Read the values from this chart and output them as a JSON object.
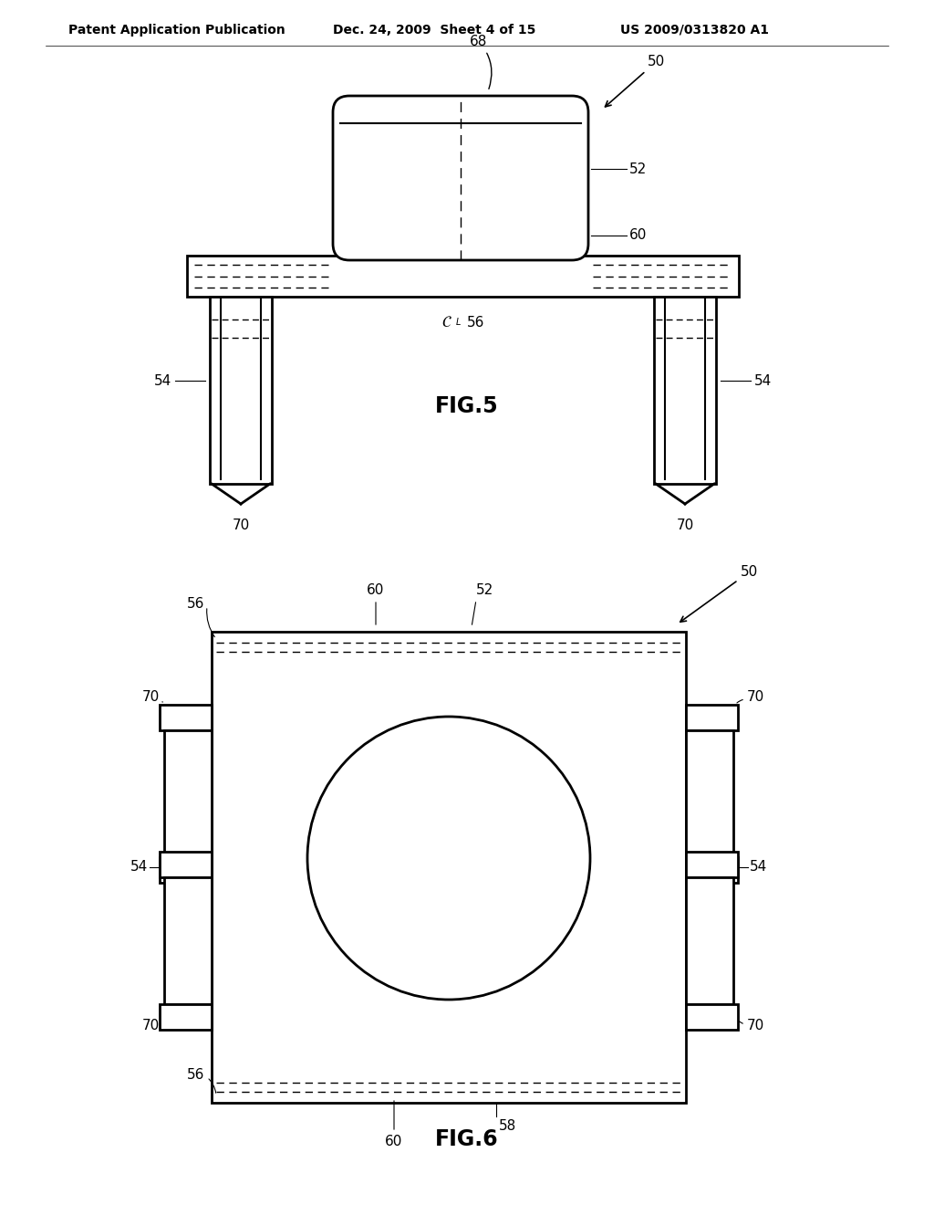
{
  "bg_color": "#ffffff",
  "line_color": "#000000",
  "header_text": "Patent Application Publication",
  "header_date": "Dec. 24, 2009  Sheet 4 of 15",
  "header_patent": "US 2009/0313820 A1",
  "fig5_title": "FIG.5",
  "fig6_title": "FIG.6",
  "label_fontsize": 11,
  "fig_title_fontsize": 17,
  "header_fontsize": 10
}
